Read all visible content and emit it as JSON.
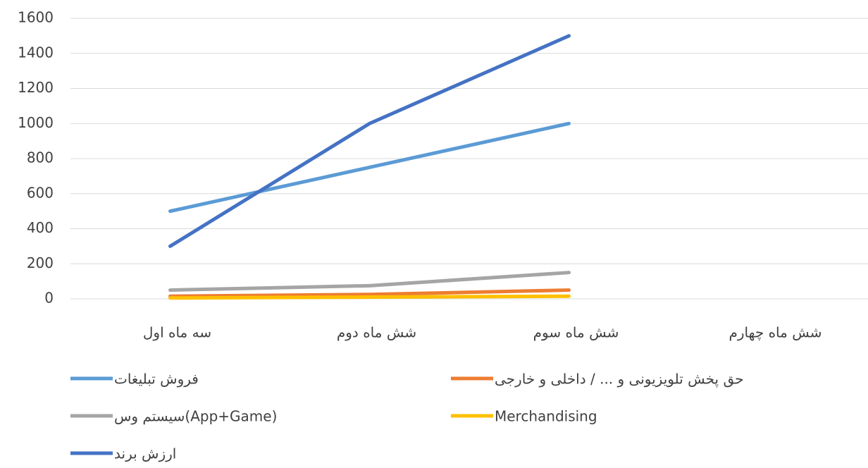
{
  "chart_data": {
    "type": "line",
    "categories": [
      "سه ماه اول",
      "شش ماه دوم",
      "شش ماه سوم",
      "شش ماه چهارم"
    ],
    "series": [
      {
        "name": "فروش تبلیغات",
        "color": "#5b9bd5",
        "values": [
          500,
          750,
          1000,
          null
        ]
      },
      {
        "name": "حق پخش تلویزیونی و ... / داخلی و خارجی",
        "color": "#ed7d31",
        "values": [
          15,
          25,
          50,
          null
        ]
      },
      {
        "name": "سیستم وس(App+Game)",
        "color": "#a5a5a5",
        "values": [
          50,
          75,
          150,
          null
        ]
      },
      {
        "name": "Merchandising",
        "color": "#ffc000",
        "values": [
          5,
          10,
          15,
          null
        ]
      },
      {
        "name": "ارزش برند",
        "color": "#4472c4",
        "values": [
          300,
          1000,
          1500,
          null
        ]
      }
    ],
    "ylim": [
      0,
      1600
    ],
    "yticks": [
      0,
      200,
      400,
      600,
      800,
      1000,
      1200,
      1400,
      1600
    ],
    "grid": true,
    "legend": "bottom"
  }
}
